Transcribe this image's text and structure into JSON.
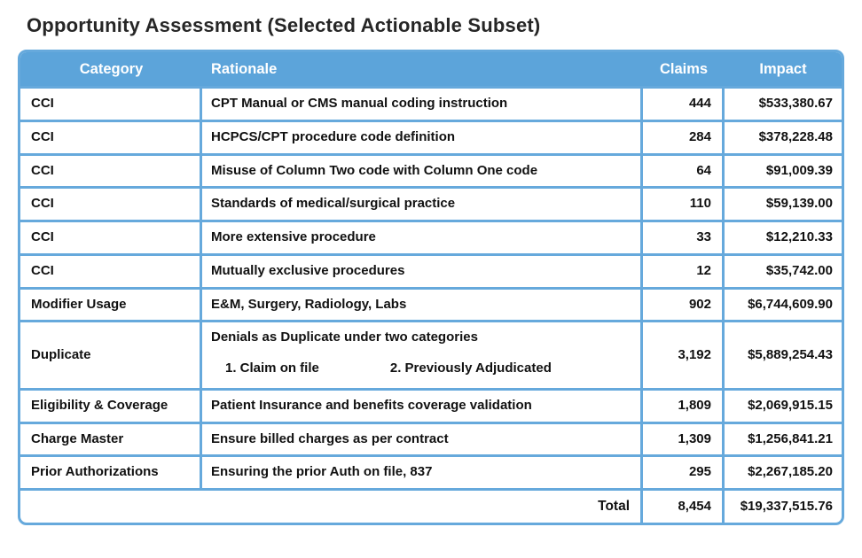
{
  "title": "Opportunity Assessment (Selected Actionable Subset)",
  "colors": {
    "header_bg": "#5CA4DA",
    "border": "#66A9DC",
    "text": "#111111"
  },
  "table": {
    "columns": [
      "Category",
      "Rationale",
      "Claims",
      "Impact"
    ],
    "rows": [
      {
        "category": "CCI",
        "rationale": "CPT Manual or CMS manual coding instruction",
        "claims": "444",
        "impact": "$533,380.67"
      },
      {
        "category": "CCI",
        "rationale": "HCPCS/CPT procedure code definition",
        "claims": "284",
        "impact": "$378,228.48"
      },
      {
        "category": "CCI",
        "rationale": "Misuse of Column Two code with Column One code",
        "claims": "64",
        "impact": "$91,009.39"
      },
      {
        "category": "CCI",
        "rationale": "Standards of medical/surgical practice",
        "claims": "110",
        "impact": "$59,139.00"
      },
      {
        "category": "CCI",
        "rationale": "More extensive procedure",
        "claims": "33",
        "impact": "$12,210.33"
      },
      {
        "category": "CCI",
        "rationale": "Mutually exclusive procedures",
        "claims": "12",
        "impact": "$35,742.00"
      },
      {
        "category": "Modifier Usage",
        "rationale": "E&M, Surgery, Radiology, Labs",
        "claims": "902",
        "impact": "$6,744,609.90"
      },
      {
        "category": "Duplicate",
        "rationale": "Denials as Duplicate under two categories",
        "rationale_sub": [
          "1. Claim on file",
          "2. Previously Adjudicated"
        ],
        "claims": "3,192",
        "impact": "$5,889,254.43"
      },
      {
        "category": "Eligibility & Coverage",
        "rationale": "Patient Insurance and benefits coverage validation",
        "claims": "1,809",
        "impact": "$2,069,915.15"
      },
      {
        "category": "Charge Master",
        "rationale": "Ensure billed charges as per contract",
        "claims": "1,309",
        "impact": "$1,256,841.21"
      },
      {
        "category": "Prior Authorizations",
        "rationale": "Ensuring the prior Auth on file, 837",
        "claims": "295",
        "impact": "$2,267,185.20"
      }
    ],
    "total": {
      "label": "Total",
      "claims": "8,454",
      "impact": "$19,337,515.76"
    }
  }
}
